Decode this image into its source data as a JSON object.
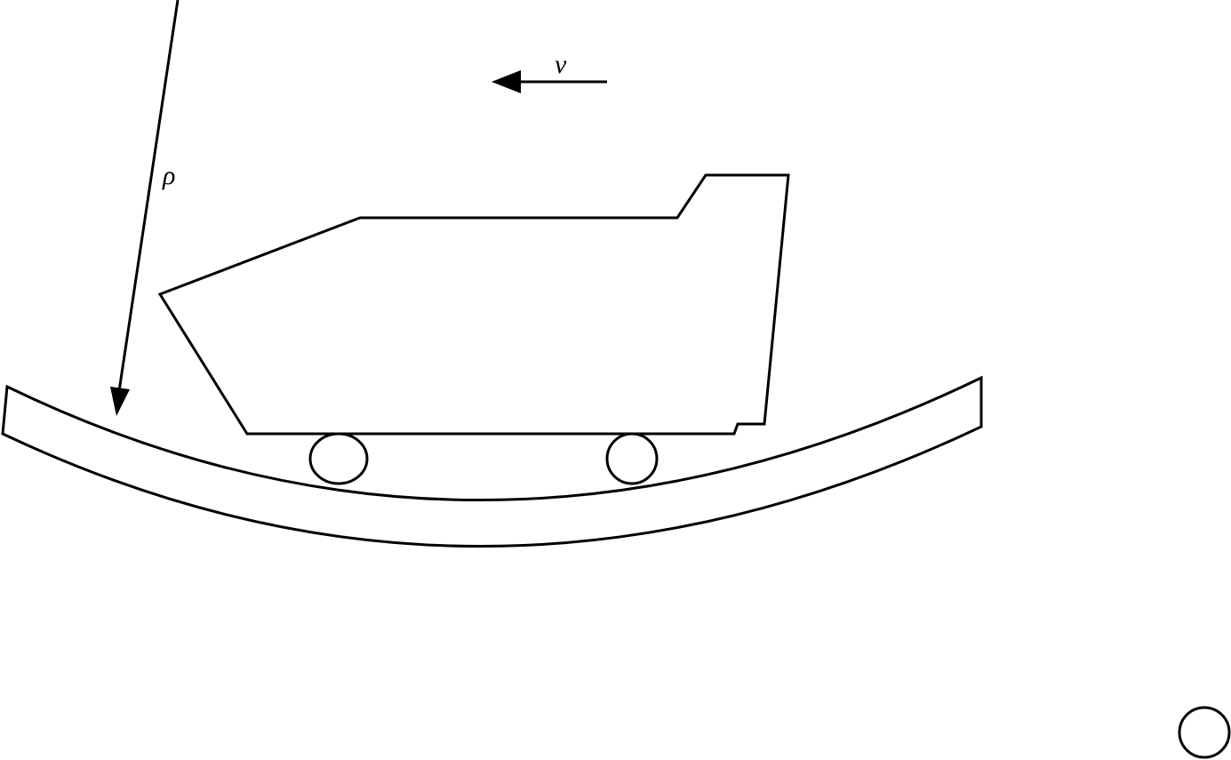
{
  "diagram": {
    "labels": {
      "velocity": "v",
      "radius": "ρ"
    },
    "colors": {
      "stroke": "#000000",
      "background": "#ffffff"
    }
  }
}
